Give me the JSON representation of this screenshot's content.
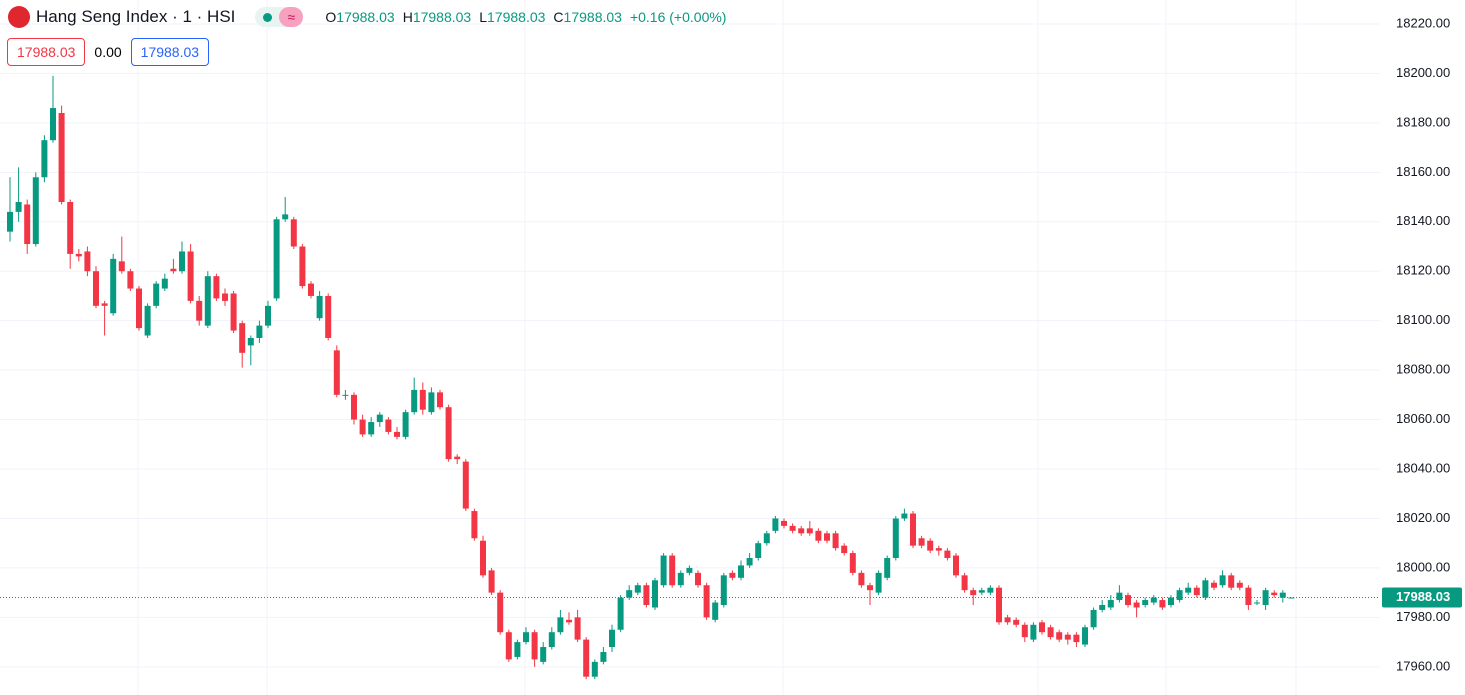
{
  "chart_data": {
    "type": "candlestick",
    "title": "Hang Seng Index · 1 · HSI",
    "ohlc_labels": [
      "O",
      "H",
      "L",
      "C"
    ],
    "change": "+0.16 (+0.00%)",
    "bid": "17988.03",
    "spread": "0.00",
    "ask": "17988.03",
    "up_color": "#089981",
    "down_color": "#f23645",
    "grid": true,
    "ylim": [
      17948.6,
      18229.7
    ],
    "yticks": [
      {
        "value": 17960,
        "label": "17960.00"
      },
      {
        "value": 17980,
        "label": "17980.00"
      },
      {
        "value": 18000,
        "label": "18000.00"
      },
      {
        "value": 18020,
        "label": "18020.00"
      },
      {
        "value": 18040,
        "label": "18040.00"
      },
      {
        "value": 18060,
        "label": "18060.00"
      },
      {
        "value": 18080,
        "label": "18080.00"
      },
      {
        "value": 18100,
        "label": "18100.00"
      },
      {
        "value": 18120,
        "label": "18120.00"
      },
      {
        "value": 18140,
        "label": "18140.00"
      },
      {
        "value": 18160,
        "label": "18160.00"
      },
      {
        "value": 18180,
        "label": "18180.00"
      },
      {
        "value": 18200,
        "label": "18200.00"
      },
      {
        "value": 18220,
        "label": "18220.00"
      }
    ],
    "open": [
      18136,
      18144,
      18147,
      18131,
      18158,
      18173,
      18184,
      18148,
      18127,
      18128,
      18120,
      18107,
      18103,
      18124,
      18120,
      18113,
      18094,
      18106,
      18113,
      18121,
      18120,
      18128,
      18108,
      18098,
      18118,
      18111,
      18111,
      18099,
      18090,
      18093,
      18098,
      18109,
      18141,
      18141,
      18130,
      18115,
      18101,
      18110,
      18088,
      18070,
      18070,
      18060,
      18054,
      18059,
      18060,
      18055,
      18053,
      18063,
      18072,
      18063,
      18071,
      18065,
      18045,
      18043,
      18023,
      18011,
      17999,
      17990,
      17974,
      17964,
      17970,
      17974,
      17962,
      17968,
      17974,
      17979,
      17980,
      17971,
      17956,
      17962,
      17968,
      17975,
      17988,
      17990,
      17993,
      17984,
      17993,
      18005,
      17993,
      17998,
      17998,
      17993,
      17979,
      17985,
      17998,
      17996,
      18001,
      18004,
      18010,
      18015,
      18019,
      18017,
      18016,
      18016,
      18015,
      18014,
      18014,
      18009,
      18006,
      17998,
      17993,
      17990,
      17996,
      18004,
      18020,
      18022,
      18012,
      18011,
      18008,
      18007,
      18005,
      17997,
      17991,
      17990,
      17990,
      17992,
      17980,
      17979,
      17977,
      17971,
      17978,
      17976,
      17974,
      17973,
      17973,
      17969,
      17976,
      17983,
      17984,
      17987,
      17989,
      17986,
      17985,
      17986,
      17987,
      17985,
      17987,
      17990,
      17992,
      17988,
      17994,
      17993,
      17997,
      17994,
      17992,
      17986,
      17985,
      17990,
      17988,
      17988.03
    ],
    "high": [
      18158,
      18162,
      18149,
      18160,
      18175,
      18199,
      18187,
      18149,
      18129,
      18130,
      18122,
      18108,
      18127,
      18134,
      18121,
      18114,
      18107,
      18116,
      18119,
      18125,
      18132,
      18131,
      18110,
      18120,
      18119,
      18113,
      18112,
      18100,
      18094,
      18100,
      18108,
      18142,
      18150,
      18142,
      18131,
      18116,
      18112,
      18111,
      18090,
      18072,
      18071,
      18062,
      18061,
      18063,
      18061,
      18057,
      18064,
      18077,
      18075,
      18073,
      18072,
      18066,
      18046,
      18044,
      18024,
      18013,
      18000,
      17991,
      17975,
      17971,
      17976,
      17975,
      17970,
      17976,
      17983,
      17982,
      17983,
      17972,
      17963,
      17968,
      17977,
      17989,
      17993,
      17994,
      17994,
      17996,
      18006,
      18006,
      17999,
      18001,
      17999,
      17994,
      17987,
      17998,
      17999,
      18003,
      18006,
      18011,
      18015,
      18021,
      18020,
      18018,
      18017,
      18019,
      18016,
      18015,
      18015,
      18010,
      18007,
      17999,
      17994,
      17999,
      18005,
      18021,
      18024,
      18023,
      18013,
      18012,
      18009,
      18008,
      18006,
      17998,
      17992,
      17992,
      17993,
      17993,
      17981,
      17980,
      17978,
      17978,
      17979,
      17977,
      17975,
      17974,
      17974,
      17977,
      17984,
      17987,
      17989,
      17993,
      17990,
      17987,
      17988,
      17989,
      17988,
      17989,
      17992,
      17994,
      17993,
      17996,
      17995,
      17999,
      17998,
      17995,
      17993,
      17987,
      17992,
      17991,
      17991,
      17988.03
    ],
    "low": [
      18132,
      18140,
      18127,
      18130,
      18156,
      18172,
      18147,
      18121,
      18124,
      18118,
      18105,
      18094,
      18102,
      18119,
      18112,
      18096,
      18093,
      18105,
      18112,
      18119,
      18119,
      18107,
      18098,
      18097,
      18108,
      18106,
      18095,
      18081,
      18082,
      18091,
      18097,
      18108,
      18140,
      18129,
      18113,
      18109,
      18100,
      18092,
      18069,
      18068,
      18058,
      18053,
      18053,
      18057,
      18054,
      18052,
      18052,
      18062,
      18062,
      18062,
      18064,
      18043,
      18042,
      18023,
      18011,
      17996,
      17989,
      17973,
      17962,
      17963,
      17969,
      17960,
      17961,
      17967,
      17973,
      17977,
      17970,
      17955,
      17955,
      17961,
      17966,
      17974,
      17987,
      17989,
      17984,
      17983,
      17992,
      17992,
      17992,
      17997,
      17992,
      17979,
      17978,
      17984,
      17995,
      17995,
      18000,
      18003,
      18009,
      18014,
      18016,
      18014,
      18013,
      18013,
      18010,
      18010,
      18007,
      18005,
      17997,
      17992,
      17985,
      17989,
      17995,
      18003,
      18019,
      18008,
      18008,
      18006,
      18005,
      18003,
      17996,
      17990,
      17985,
      17989,
      17989,
      17977,
      17977,
      17976,
      17970,
      17970,
      17973,
      17971,
      17970,
      17969,
      17968,
      17968,
      17975,
      17982,
      17983,
      17986,
      17984,
      17980,
      17984,
      17985,
      17983,
      17984,
      17986,
      17989,
      17988,
      17987,
      17991,
      17992,
      17991,
      17991,
      17983,
      17985,
      17983,
      17988,
      17986,
      17988.03
    ],
    "close": [
      18144,
      18148,
      18131,
      18158,
      18173,
      18186,
      18148,
      18127,
      18126,
      18120,
      18106,
      18106,
      18125,
      18120,
      18113,
      18097,
      18106,
      18115,
      18117,
      18120,
      18128,
      18108,
      18100,
      18118,
      18109,
      18108,
      18096,
      18087,
      18093,
      18098,
      18106,
      18141,
      18143,
      18130,
      18114,
      18110,
      18110,
      18093,
      18070,
      18070,
      18060,
      18054,
      18059,
      18062,
      18055,
      18053,
      18063,
      18072,
      18064,
      18071,
      18065,
      18044,
      18044,
      18024,
      18012,
      17997,
      17990,
      17974,
      17963,
      17970,
      17974,
      17963,
      17968,
      17974,
      17980,
      17978,
      17971,
      17956,
      17962,
      17966,
      17975,
      17988,
      17991,
      17993,
      17985,
      17995,
      18005,
      17993,
      17998,
      18000,
      17993,
      17980,
      17986,
      17997,
      17996,
      18001,
      18004,
      18010,
      18014,
      18020,
      18017,
      18015,
      18014,
      18014,
      18011,
      18011,
      18008,
      18006,
      17998,
      17993,
      17991,
      17998,
      18004,
      18020,
      18022,
      18009,
      18009,
      18007,
      18007,
      18004,
      17997,
      17991,
      17989,
      17991,
      17992,
      17978,
      17978,
      17977,
      17972,
      17977,
      17974,
      17972,
      17971,
      17971,
      17970,
      17976,
      17983,
      17985,
      17987,
      17990,
      17985,
      17984,
      17987,
      17988,
      17984,
      17988,
      17991,
      17992,
      17989,
      17995,
      17992,
      17997,
      17992,
      17992,
      17985,
      17986,
      17991,
      17989,
      17990,
      17988.03
    ]
  }
}
